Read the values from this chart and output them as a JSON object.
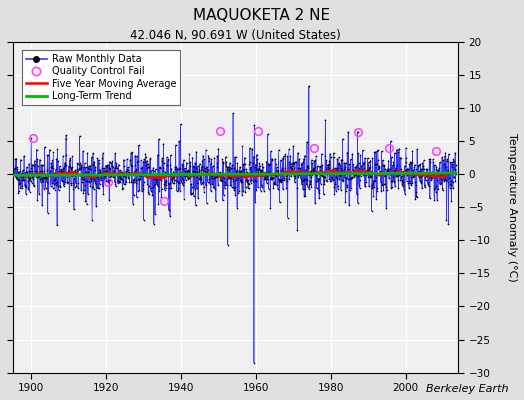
{
  "title": "MAQUOKETA 2 NE",
  "subtitle": "42.046 N, 90.691 W (United States)",
  "ylabel": "Temperature Anomaly (°C)",
  "watermark": "Berkeley Earth",
  "xlim": [
    1895,
    2014
  ],
  "ylim": [
    -30,
    20
  ],
  "yticks": [
    -30,
    -25,
    -20,
    -15,
    -10,
    -5,
    0,
    5,
    10,
    15,
    20
  ],
  "xticks": [
    1900,
    1920,
    1940,
    1960,
    1980,
    2000
  ],
  "fig_bg_color": "#e0e0e0",
  "ax_bg_color": "#f0f0f0",
  "grid_color": "#ffffff",
  "raw_line_color": "#3333ff",
  "raw_dot_color": "#000000",
  "ma_color": "#ff0000",
  "trend_color": "#00bb00",
  "qc_color": "#ff44ff",
  "seed": 42,
  "start_year": 1895.5,
  "end_year": 2013.5,
  "n_months": 1417,
  "large_outlier_year": 1959.5,
  "large_outlier_value": -28.5,
  "legend_entries": [
    "Raw Monthly Data",
    "Quality Control Fail",
    "Five Year Moving Average",
    "Long-Term Trend"
  ]
}
